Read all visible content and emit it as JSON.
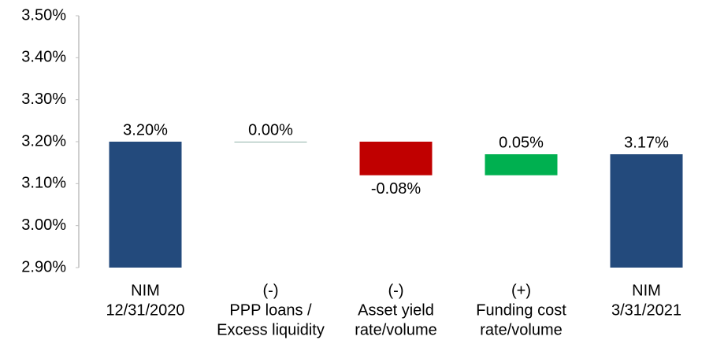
{
  "chart_data": {
    "type": "waterfall",
    "categories": [
      [
        "NIM",
        "12/31/2020"
      ],
      [
        "(-)",
        "PPP loans /",
        "Excess liquidity"
      ],
      [
        "(-)",
        "Asset yield",
        "rate/volume"
      ],
      [
        "(+)",
        "Funding cost",
        "rate/volume"
      ],
      [
        "NIM",
        "3/31/2021"
      ]
    ],
    "values": [
      3.2,
      0.0,
      -0.08,
      0.05,
      3.17
    ],
    "value_labels": [
      "3.20%",
      "0.00%",
      "-0.08%",
      "0.05%",
      "3.17%"
    ],
    "kinds": [
      "total",
      "delta",
      "delta",
      "delta",
      "total"
    ],
    "colors": [
      "#234a7c",
      "#8fb3a8",
      "#c00000",
      "#00b050",
      "#234a7c"
    ],
    "ylim": [
      2.9,
      3.5
    ],
    "yticks": [
      {
        "value": 2.9,
        "label": "2.90%"
      },
      {
        "value": 3.0,
        "label": "3.00%"
      },
      {
        "value": 3.1,
        "label": "3.10%"
      },
      {
        "value": 3.2,
        "label": "3.20%"
      },
      {
        "value": 3.3,
        "label": "3.30%"
      },
      {
        "value": 3.4,
        "label": "3.40%"
      },
      {
        "value": 3.5,
        "label": "3.50%"
      }
    ],
    "grid": false
  }
}
